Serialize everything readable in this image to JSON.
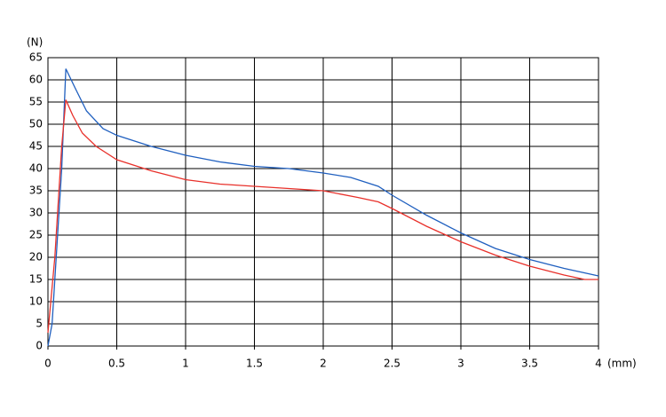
{
  "chart_data": {
    "type": "line",
    "x_label": "(mm)",
    "y_label": "(N)",
    "xlim": [
      0,
      4
    ],
    "ylim": [
      0,
      65
    ],
    "xticks": [
      0,
      0.5,
      1,
      1.5,
      2,
      2.5,
      3,
      3.5,
      4
    ],
    "yticks": [
      0,
      5,
      10,
      15,
      20,
      25,
      30,
      35,
      40,
      45,
      50,
      55,
      60,
      65
    ],
    "grid": true,
    "series": [
      {
        "color": "#1f5fbf",
        "x": [
          0,
          0.03,
          0.05,
          0.1,
          0.13,
          0.2,
          0.28,
          0.4,
          0.5,
          0.75,
          1,
          1.25,
          1.5,
          1.75,
          2,
          2.2,
          2.4,
          2.5,
          2.75,
          3,
          3.25,
          3.5,
          3.75,
          4
        ],
        "values": [
          0,
          5,
          15,
          40,
          62.5,
          58,
          53,
          49,
          47.5,
          45,
          43,
          41.5,
          40.5,
          40,
          39,
          38,
          36,
          34,
          29.5,
          25.5,
          22,
          19.5,
          17.5,
          15.8
        ]
      },
      {
        "color": "#e8302a",
        "x": [
          0,
          0.05,
          0.1,
          0.13,
          0.18,
          0.25,
          0.35,
          0.5,
          0.75,
          1,
          1.25,
          1.5,
          1.75,
          2,
          2.25,
          2.4,
          2.5,
          2.75,
          3,
          3.25,
          3.5,
          3.75,
          3.9,
          4
        ],
        "values": [
          3,
          20,
          45,
          55.5,
          52,
          48,
          45,
          42,
          39.5,
          37.5,
          36.5,
          36,
          35.5,
          35,
          33.5,
          32.5,
          31,
          27,
          23.5,
          20.5,
          18,
          16,
          15,
          15
        ]
      }
    ]
  }
}
